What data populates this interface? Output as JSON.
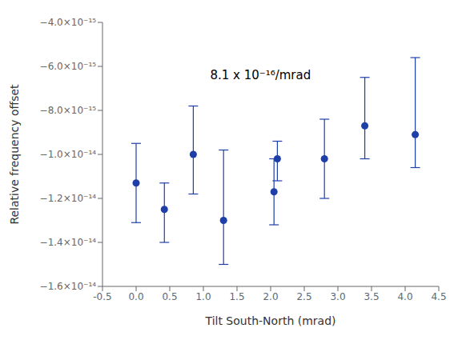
{
  "chart_data": {
    "type": "scatter",
    "x": [
      0.0,
      0.42,
      0.85,
      1.3,
      2.05,
      2.1,
      2.8,
      3.4,
      4.15
    ],
    "y": [
      -1.13e-14,
      -1.25e-14,
      -1e-14,
      -1.3e-14,
      -1.17e-14,
      -1.02e-14,
      -1.02e-14,
      -8.7e-15,
      -9.1e-15
    ],
    "yerr_lower": [
      1.8e-15,
      1.5e-15,
      1.8e-15,
      2e-15,
      1.5e-15,
      1e-15,
      1.8e-15,
      1.5e-15,
      1.5e-15
    ],
    "yerr_upper": [
      1.8e-15,
      1.2e-15,
      2.2e-15,
      3.2e-15,
      1.5e-15,
      8e-16,
      1.8e-15,
      2.2e-15,
      3.5e-15
    ],
    "color": "#1f3fa8",
    "marker": "circle",
    "grid": false,
    "xlabel": "Tilt South-North (mrad)",
    "ylabel": "Relative frequency offset",
    "annotations": [
      "8.1 x 10⁻¹⁶/mrad"
    ],
    "xlim": [
      -0.5,
      4.5
    ],
    "ylim": [
      -1.6e-14,
      -4e-15
    ],
    "xticks": [
      -0.5,
      {
        "value": 0.0,
        "label": "0.0"
      },
      0.5,
      {
        "value": 1.0,
        "label": "1.0"
      },
      1.5,
      {
        "value": 2.0,
        "label": "2.0"
      },
      2.5,
      {
        "value": 3.0,
        "label": "3.0"
      },
      3.5,
      {
        "value": 4.0,
        "label": "4.0"
      },
      4.5
    ],
    "yticks": [
      {
        "value": -1.6e-14,
        "label": "−1.6×10⁻¹⁴"
      },
      {
        "value": -1.4e-14,
        "label": "−1.4×10⁻¹⁴"
      },
      {
        "value": -1.2e-14,
        "label": "−1.2×10⁻¹⁴"
      },
      {
        "value": -1e-14,
        "label": "−1.0×10⁻¹⁴"
      },
      {
        "value": -8e-15,
        "label": "−8.0×10⁻¹⁵"
      },
      {
        "value": -6e-15,
        "label": "−6.0×10⁻¹⁵"
      },
      {
        "value": -4e-15,
        "label": "−4.0×10⁻¹⁵"
      }
    ]
  }
}
